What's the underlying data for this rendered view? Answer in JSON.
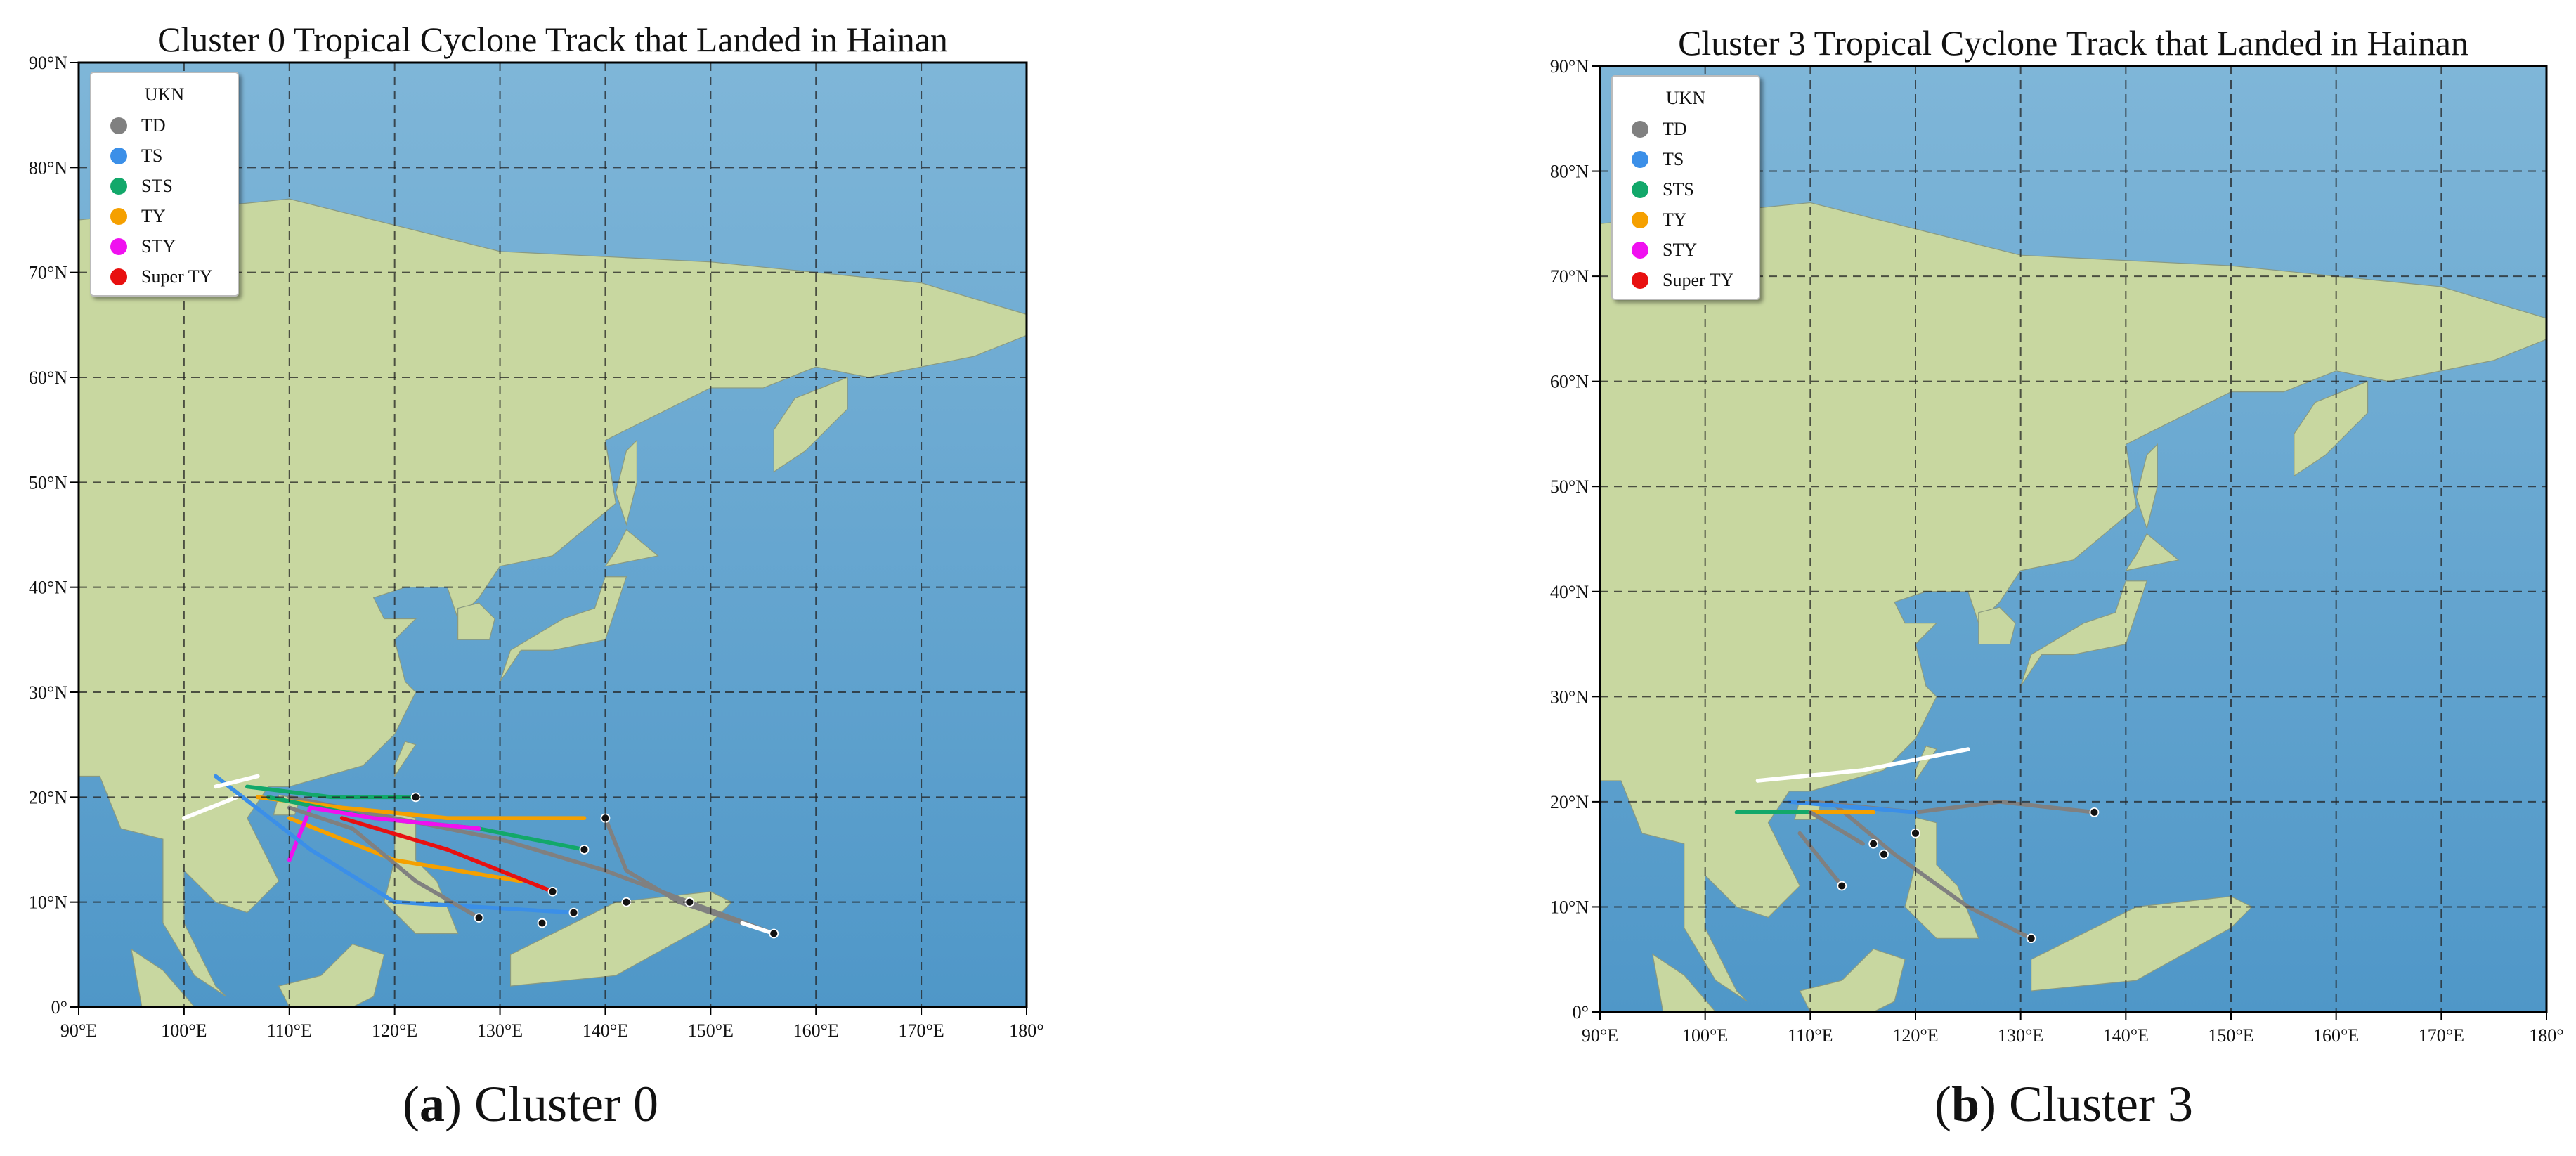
{
  "panels": [
    {
      "title": "Cluster 0 Tropical Cyclone Track that Landed in Hainan",
      "caption": {
        "prefix": "(",
        "letter": "a",
        "suffix": ") Cluster 0"
      },
      "xlim": [
        90,
        180
      ],
      "ylim": [
        0,
        90
      ],
      "xticks": [
        {
          "value": 90,
          "label": "90°E"
        },
        {
          "value": 100,
          "label": "100°E"
        },
        {
          "value": 110,
          "label": "110°E"
        },
        {
          "value": 120,
          "label": "120°E"
        },
        {
          "value": 130,
          "label": "130°E"
        },
        {
          "value": 140,
          "label": "140°E"
        },
        {
          "value": 150,
          "label": "150°E"
        },
        {
          "value": 160,
          "label": "160°E"
        },
        {
          "value": 170,
          "label": "170°E"
        },
        {
          "value": 180,
          "label": "180°"
        }
      ],
      "yticks": [
        {
          "value": 0,
          "label": "0°"
        },
        {
          "value": 10,
          "label": "10°N"
        },
        {
          "value": 20,
          "label": "20°N"
        },
        {
          "value": 30,
          "label": "30°N"
        },
        {
          "value": 40,
          "label": "40°N"
        },
        {
          "value": 50,
          "label": "50°N"
        },
        {
          "value": 60,
          "label": "60°N"
        },
        {
          "value": 70,
          "label": "70°N"
        },
        {
          "value": 80,
          "label": "80°N"
        },
        {
          "value": 90,
          "label": "90°N"
        }
      ],
      "grid": true,
      "legend": {
        "title": "UKN",
        "items": [
          {
            "name": "TD",
            "color": "#808080"
          },
          {
            "name": "TS",
            "color": "#3b8fe8"
          },
          {
            "name": "STS",
            "color": "#12a86a"
          },
          {
            "name": "TY",
            "color": "#f5a000"
          },
          {
            "name": "STY",
            "color": "#f010f0"
          },
          {
            "name": "Super TY",
            "color": "#e81010"
          }
        ]
      }
    },
    {
      "title": "Cluster 3 Tropical Cyclone Track that Landed in Hainan",
      "caption": {
        "prefix": "(",
        "letter": "b",
        "suffix": ") Cluster 3"
      },
      "xlim": [
        90,
        180
      ],
      "ylim": [
        0,
        90
      ],
      "xticks": [
        {
          "value": 90,
          "label": "90°E"
        },
        {
          "value": 100,
          "label": "100°E"
        },
        {
          "value": 110,
          "label": "110°E"
        },
        {
          "value": 120,
          "label": "120°E"
        },
        {
          "value": 130,
          "label": "130°E"
        },
        {
          "value": 140,
          "label": "140°E"
        },
        {
          "value": 150,
          "label": "150°E"
        },
        {
          "value": 160,
          "label": "160°E"
        },
        {
          "value": 170,
          "label": "170°E"
        },
        {
          "value": 180,
          "label": "180°"
        }
      ],
      "yticks": [
        {
          "value": 0,
          "label": "0°"
        },
        {
          "value": 10,
          "label": "10°N"
        },
        {
          "value": 20,
          "label": "20°N"
        },
        {
          "value": 30,
          "label": "30°N"
        },
        {
          "value": 40,
          "label": "40°N"
        },
        {
          "value": 50,
          "label": "50°N"
        },
        {
          "value": 60,
          "label": "60°N"
        },
        {
          "value": 70,
          "label": "70°N"
        },
        {
          "value": 80,
          "label": "80°N"
        },
        {
          "value": 90,
          "label": "90°N"
        }
      ],
      "grid": true,
      "legend": {
        "title": "UKN",
        "items": [
          {
            "name": "TD",
            "color": "#808080"
          },
          {
            "name": "TS",
            "color": "#3b8fe8"
          },
          {
            "name": "STS",
            "color": "#12a86a"
          },
          {
            "name": "TY",
            "color": "#f5a000"
          },
          {
            "name": "STY",
            "color": "#f010f0"
          },
          {
            "name": "Super TY",
            "color": "#e81010"
          }
        ]
      }
    }
  ]
}
